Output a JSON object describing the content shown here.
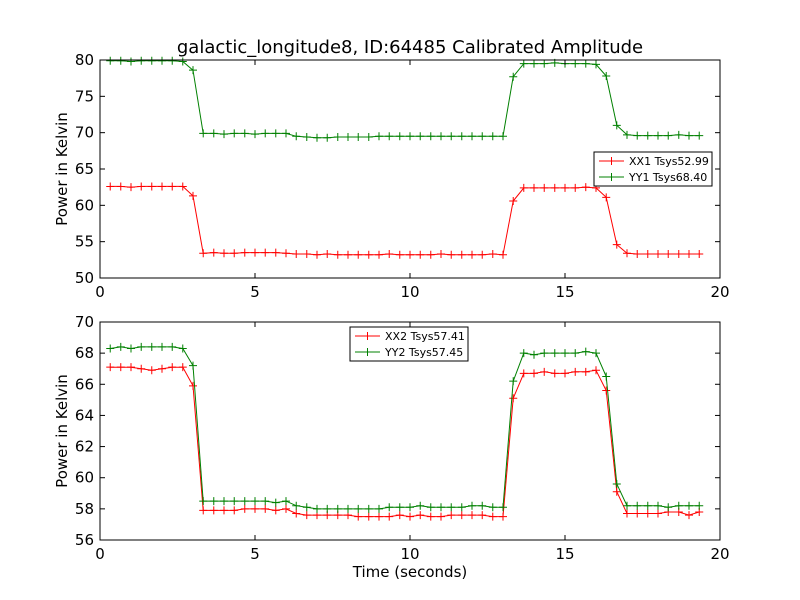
{
  "chart_data": [
    {
      "type": "line",
      "title": "galactic_longitude8, ID:64485 Calibrated Amplitude",
      "xlabel": "",
      "ylabel": "Power in Kelvin",
      "xlim": [
        0,
        20
      ],
      "ylim": [
        50,
        80
      ],
      "xticks": [
        "0",
        "5",
        "10",
        "15",
        "20"
      ],
      "yticks": [
        "50",
        "55",
        "60",
        "65",
        "70",
        "75",
        "80"
      ],
      "grid": false,
      "legend_position": "right",
      "x": [
        0.33,
        0.67,
        1.0,
        1.33,
        1.67,
        2.0,
        2.33,
        2.67,
        3.0,
        3.33,
        3.67,
        4.0,
        4.33,
        4.67,
        5.0,
        5.33,
        5.67,
        6.0,
        6.33,
        6.67,
        7.0,
        7.33,
        7.67,
        8.0,
        8.33,
        8.67,
        9.0,
        9.33,
        9.67,
        10.0,
        10.33,
        10.67,
        11.0,
        11.33,
        11.67,
        12.0,
        12.33,
        12.67,
        13.0,
        13.33,
        13.67,
        14.0,
        14.33,
        14.67,
        15.0,
        15.33,
        15.67,
        16.0,
        16.33,
        16.67,
        17.0,
        17.33,
        17.67,
        18.0,
        18.33,
        18.67,
        19.0,
        19.33
      ],
      "series": [
        {
          "name": "XX1 Tsys52.99",
          "color": "#ff0000",
          "values": [
            62.6,
            62.6,
            62.5,
            62.6,
            62.6,
            62.6,
            62.6,
            62.6,
            61.3,
            53.4,
            53.5,
            53.4,
            53.4,
            53.5,
            53.5,
            53.5,
            53.5,
            53.4,
            53.3,
            53.3,
            53.2,
            53.3,
            53.2,
            53.2,
            53.2,
            53.2,
            53.2,
            53.3,
            53.2,
            53.2,
            53.2,
            53.2,
            53.3,
            53.2,
            53.2,
            53.2,
            53.2,
            53.3,
            53.2,
            60.6,
            62.4,
            62.4,
            62.4,
            62.4,
            62.4,
            62.4,
            62.5,
            62.4,
            61.1,
            54.6,
            53.4,
            53.3,
            53.3,
            53.3,
            53.3,
            53.3,
            53.3,
            53.3
          ]
        },
        {
          "name": "YY1 Tsys68.40",
          "color": "#008000",
          "values": [
            79.9,
            79.9,
            79.8,
            79.9,
            79.9,
            79.9,
            79.9,
            79.8,
            78.6,
            69.9,
            69.9,
            69.8,
            69.9,
            69.9,
            69.8,
            69.9,
            69.9,
            69.9,
            69.5,
            69.4,
            69.3,
            69.3,
            69.4,
            69.4,
            69.4,
            69.4,
            69.5,
            69.5,
            69.5,
            69.5,
            69.5,
            69.5,
            69.5,
            69.5,
            69.5,
            69.5,
            69.5,
            69.5,
            69.5,
            77.7,
            79.5,
            79.5,
            79.5,
            79.6,
            79.5,
            79.5,
            79.5,
            79.4,
            77.8,
            71.0,
            69.7,
            69.6,
            69.6,
            69.6,
            69.6,
            69.7,
            69.6,
            69.6
          ]
        }
      ]
    },
    {
      "type": "line",
      "title": "",
      "xlabel": "Time (seconds)",
      "ylabel": "Power in Kelvin",
      "xlim": [
        0,
        20
      ],
      "ylim": [
        56,
        70
      ],
      "xticks": [
        "0",
        "5",
        "10",
        "15",
        "20"
      ],
      "yticks": [
        "56",
        "58",
        "60",
        "62",
        "64",
        "66",
        "68",
        "70"
      ],
      "grid": false,
      "legend_position": "top-center",
      "x": [
        0.33,
        0.67,
        1.0,
        1.33,
        1.67,
        2.0,
        2.33,
        2.67,
        3.0,
        3.33,
        3.67,
        4.0,
        4.33,
        4.67,
        5.0,
        5.33,
        5.67,
        6.0,
        6.33,
        6.67,
        7.0,
        7.33,
        7.67,
        8.0,
        8.33,
        8.67,
        9.0,
        9.33,
        9.67,
        10.0,
        10.33,
        10.67,
        11.0,
        11.33,
        11.67,
        12.0,
        12.33,
        12.67,
        13.0,
        13.33,
        13.67,
        14.0,
        14.33,
        14.67,
        15.0,
        15.33,
        15.67,
        16.0,
        16.33,
        16.67,
        17.0,
        17.33,
        17.67,
        18.0,
        18.33,
        18.67,
        19.0,
        19.33
      ],
      "series": [
        {
          "name": "XX2 Tsys57.41",
          "color": "#ff0000",
          "values": [
            67.1,
            67.1,
            67.1,
            67.0,
            66.9,
            67.0,
            67.1,
            67.1,
            65.9,
            57.9,
            57.9,
            57.9,
            57.9,
            58.0,
            58.0,
            58.0,
            57.9,
            58.0,
            57.7,
            57.6,
            57.6,
            57.6,
            57.6,
            57.6,
            57.5,
            57.5,
            57.5,
            57.5,
            57.6,
            57.5,
            57.6,
            57.5,
            57.5,
            57.6,
            57.6,
            57.6,
            57.6,
            57.5,
            57.5,
            65.1,
            66.7,
            66.7,
            66.8,
            66.7,
            66.7,
            66.8,
            66.8,
            66.9,
            65.6,
            59.1,
            57.7,
            57.7,
            57.7,
            57.7,
            57.8,
            57.8,
            57.6,
            57.8
          ]
        },
        {
          "name": "YY2 Tsys57.45",
          "color": "#008000",
          "values": [
            68.3,
            68.4,
            68.3,
            68.4,
            68.4,
            68.4,
            68.4,
            68.3,
            67.2,
            58.5,
            58.5,
            58.5,
            58.5,
            58.5,
            58.5,
            58.5,
            58.4,
            58.5,
            58.2,
            58.1,
            58.0,
            58.0,
            58.0,
            58.0,
            58.0,
            58.0,
            58.0,
            58.1,
            58.1,
            58.1,
            58.2,
            58.1,
            58.1,
            58.1,
            58.1,
            58.2,
            58.2,
            58.1,
            58.1,
            66.2,
            68.0,
            67.9,
            68.0,
            68.0,
            68.0,
            68.0,
            68.1,
            68.0,
            66.5,
            59.6,
            58.2,
            58.2,
            58.2,
            58.2,
            58.1,
            58.2,
            58.2,
            58.2
          ]
        }
      ]
    }
  ]
}
